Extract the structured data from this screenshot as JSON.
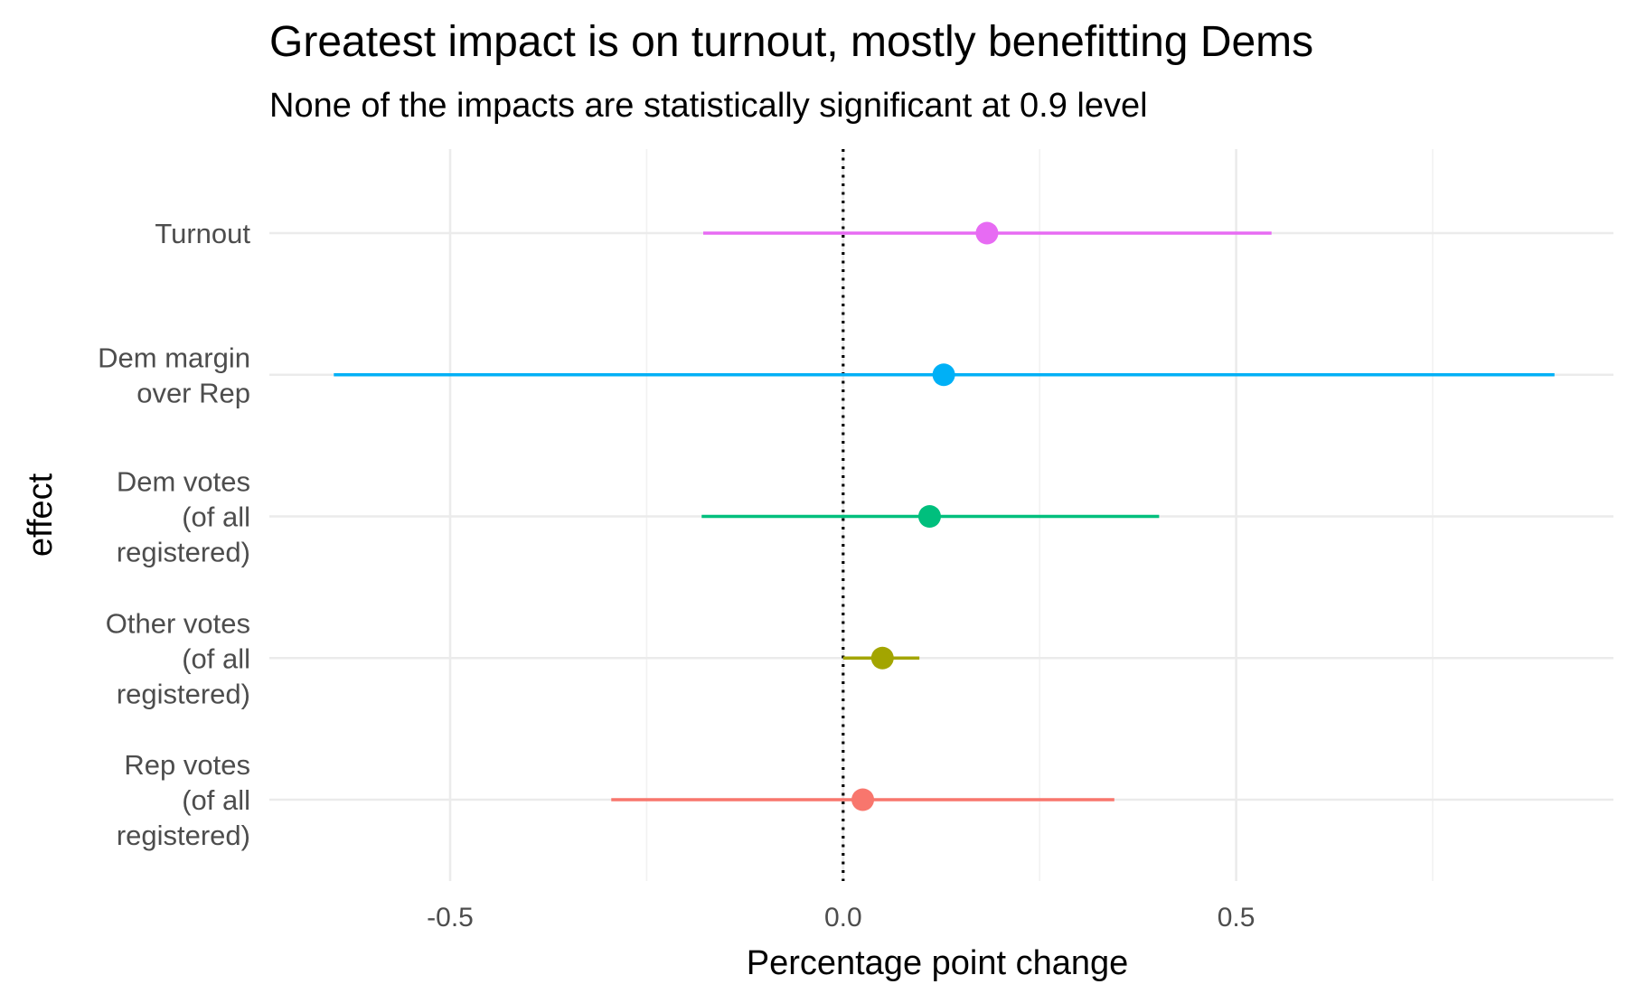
{
  "chart_data": {
    "type": "scatter",
    "subtype": "point-range",
    "title": "Greatest impact is on turnout, mostly benefitting Dems",
    "subtitle": "None of the impacts are statistically significant at 0.9 level",
    "xlabel": "Percentage point change",
    "ylabel": "effect",
    "xlim": [
      -0.73,
      0.98
    ],
    "x_ticks": [
      -0.5,
      0.0,
      0.5
    ],
    "x_tick_labels": [
      "-0.5",
      "0.0",
      "0.5"
    ],
    "reference_line": {
      "x": 0,
      "style": "dotted",
      "color": "#000000"
    },
    "grid": true,
    "legend": "none",
    "categories": [
      "Rep votes\n(of all\nregistered)",
      "Other votes\n(of all\nregistered)",
      "Dem votes\n(of all\nregistered)",
      "Dem margin\nover Rep",
      "Turnout"
    ],
    "series": [
      {
        "category": "Rep votes\n(of all\nregistered)",
        "estimate": 0.025,
        "low": -0.295,
        "high": 0.345,
        "color": "#F8766D"
      },
      {
        "category": "Other votes\n(of all\nregistered)",
        "estimate": 0.05,
        "low": 0.0,
        "high": 0.097,
        "color": "#A3A500"
      },
      {
        "category": "Dem votes\n(of all\nregistered)",
        "estimate": 0.11,
        "low": -0.18,
        "high": 0.402,
        "color": "#00BF7D"
      },
      {
        "category": "Dem margin\nover Rep",
        "estimate": 0.128,
        "low": -0.648,
        "high": 0.905,
        "color": "#00B0F6"
      },
      {
        "category": "Turnout",
        "estimate": 0.183,
        "low": -0.178,
        "high": 0.545,
        "color": "#E76BF3"
      }
    ]
  }
}
